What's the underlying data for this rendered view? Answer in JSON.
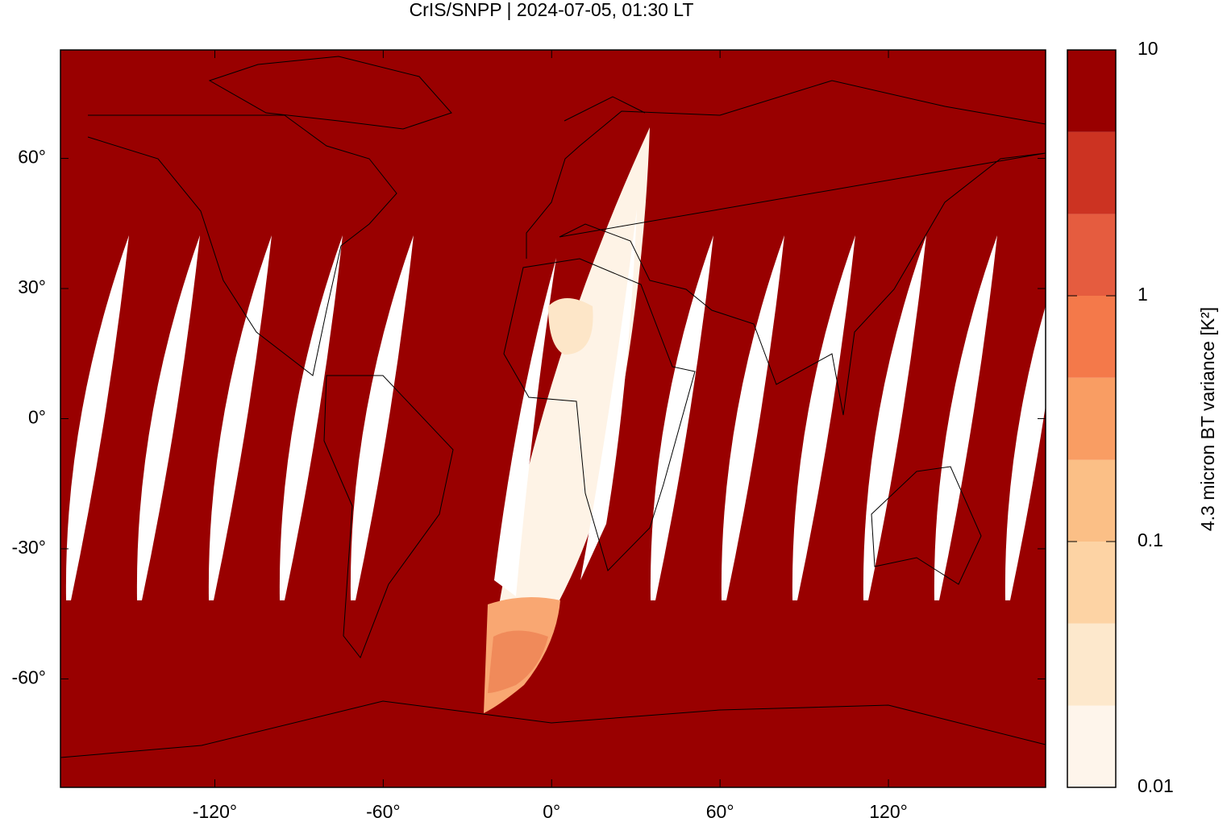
{
  "chart_data": {
    "type": "map",
    "title": "CrIS/SNPP | 2024-07-05, 01:30 LT",
    "xlim": [
      -175,
      176
    ],
    "ylim": [
      -85,
      85
    ],
    "xticks": [
      {
        "value": -120,
        "label": "-120°"
      },
      {
        "value": -60,
        "label": "-60°"
      },
      {
        "value": 0,
        "label": "0°"
      },
      {
        "value": 60,
        "label": "60°"
      },
      {
        "value": 120,
        "label": "120°"
      }
    ],
    "yticks": [
      {
        "value": -60,
        "label": "-60°"
      },
      {
        "value": -30,
        "label": "-30°"
      },
      {
        "value": 0,
        "label": "0°"
      },
      {
        "value": 30,
        "label": "30°"
      },
      {
        "value": 60,
        "label": "60°"
      }
    ],
    "colorbar": {
      "label": "4.3 micron BT variance [K²]",
      "log": true,
      "lim": [
        0.01,
        10
      ],
      "ticks": [
        0.01,
        0.1,
        1,
        10
      ],
      "levels": [
        0.01,
        0.0215,
        0.0464,
        0.1,
        0.215,
        0.464,
        1,
        2.15,
        4.64,
        10
      ],
      "colors": [
        "#fef5eb",
        "#fde8cc",
        "#fdd3a4",
        "#fbbf86",
        "#f99d63",
        "#f4794a",
        "#e55c3f",
        "#cc3322",
        "#990000"
      ]
    }
  }
}
